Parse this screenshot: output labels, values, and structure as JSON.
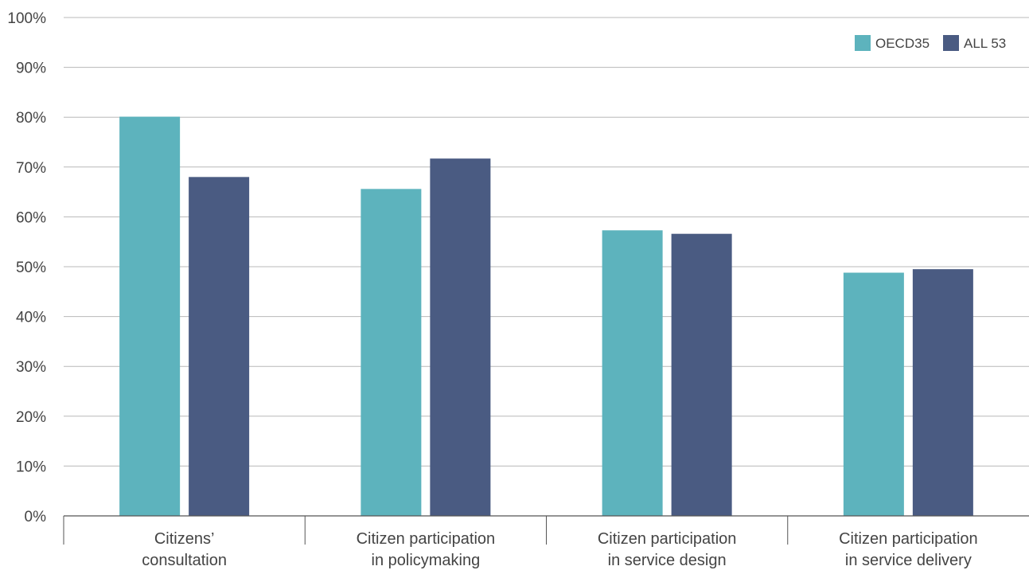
{
  "chart_data": {
    "type": "bar",
    "categories": [
      [
        "Citizens’",
        "consultation"
      ],
      [
        "Citizen participation",
        "in policymaking"
      ],
      [
        "Citizen participation",
        "in service design"
      ],
      [
        "Citizen participation",
        "in service delivery"
      ]
    ],
    "series": [
      {
        "name": "OECD35",
        "color": "#5db3bd",
        "values": [
          80.1,
          65.6,
          57.3,
          48.8
        ]
      },
      {
        "name": "ALL 53",
        "color": "#4a5b82",
        "values": [
          68.0,
          71.7,
          56.6,
          49.5
        ]
      }
    ],
    "ylim": [
      0,
      100
    ],
    "yticks": [
      "0%",
      "10%",
      "20%",
      "30%",
      "40%",
      "50%",
      "60%",
      "70%",
      "80%",
      "90%",
      "100%"
    ],
    "grid": true,
    "legend_position": "top-right",
    "title": "",
    "xlabel": "",
    "ylabel": ""
  }
}
